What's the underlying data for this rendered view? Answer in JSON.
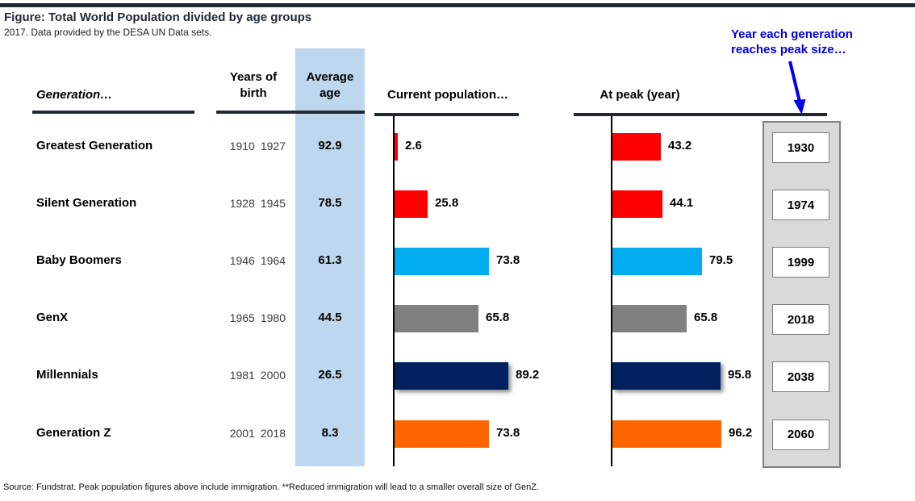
{
  "header": {
    "title": "Figure: Total World Population divided by age groups",
    "subtitle": "2017. Data provided by the DESA UN Data sets."
  },
  "columns": {
    "generation": "Generation…",
    "years_of_birth_line1": "Years of",
    "years_of_birth_line2": "birth",
    "average_age_line1": "Average",
    "average_age_line2": "age",
    "current_population": "Current population…",
    "at_peak": "At peak (year)"
  },
  "annotation": {
    "line1": "Year each generation",
    "line2": "reaches peak size…"
  },
  "rows": [
    {
      "generation": "Greatest Generation",
      "birth_start": "1910",
      "birth_end": "1927",
      "avg_age": 92.9,
      "current": 2.6,
      "peak": 43.2,
      "peak_year": "1930",
      "color": "#FF0000",
      "shadow": false
    },
    {
      "generation": "Silent Generation",
      "birth_start": "1928",
      "birth_end": "1945",
      "avg_age": 78.5,
      "current": 25.8,
      "peak": 44.1,
      "peak_year": "1974",
      "color": "#FF0000",
      "shadow": false
    },
    {
      "generation": "Baby Boomers",
      "birth_start": "1946",
      "birth_end": "1964",
      "avg_age": 61.3,
      "current": 73.8,
      "peak": 79.5,
      "peak_year": "1999",
      "color": "#00AEEF",
      "shadow": false
    },
    {
      "generation": "GenX",
      "birth_start": "1965",
      "birth_end": "1980",
      "avg_age": 44.5,
      "current": 65.8,
      "peak": 65.8,
      "peak_year": "2018",
      "color": "#808080",
      "shadow": false
    },
    {
      "generation": "Millennials",
      "birth_start": "1981",
      "birth_end": "2000",
      "avg_age": 26.5,
      "current": 89.2,
      "peak": 95.8,
      "peak_year": "2038",
      "color": "#002060",
      "shadow": true
    },
    {
      "generation": "Generation Z",
      "birth_start": "2001",
      "birth_end": "2018",
      "avg_age": 8.3,
      "current": 73.8,
      "peak": 96.2,
      "peak_year": "2060",
      "color": "#FF6600",
      "shadow": false
    }
  ],
  "footer": {
    "source": "Source: Fundstrat.  Peak population figures above include immigration.  **Reduced immigration will lead to a smaller overall size of GenZ."
  },
  "colors": {
    "band": "#BDD7EE",
    "panel": "#D9D9D9",
    "panel_border": "#808080",
    "rule": "#222A35",
    "annotation_blue": "#0000EE",
    "axis": "#000000"
  },
  "chart_data": {
    "type": "bar",
    "orientation": "horizontal",
    "title": "Figure: Total World Population divided by age groups",
    "subtitle": "2017. Data provided by the DESA UN Data sets.",
    "categories": [
      "Greatest Generation",
      "Silent Generation",
      "Baby Boomers",
      "GenX",
      "Millennials",
      "Generation Z"
    ],
    "years_of_birth": [
      [
        "1910",
        "1927"
      ],
      [
        "1928",
        "1945"
      ],
      [
        "1946",
        "1964"
      ],
      [
        "1965",
        "1980"
      ],
      [
        "1981",
        "2000"
      ],
      [
        "2001",
        "2018"
      ]
    ],
    "average_age": [
      92.9,
      78.5,
      61.3,
      44.5,
      26.5,
      8.3
    ],
    "series": [
      {
        "name": "Current population…",
        "values": [
          2.6,
          25.8,
          73.8,
          65.8,
          89.2,
          73.8
        ]
      },
      {
        "name": "At peak (year)",
        "values": [
          43.2,
          44.1,
          79.5,
          65.8,
          95.8,
          96.2
        ]
      }
    ],
    "peak_years": [
      "1930",
      "1974",
      "1999",
      "2018",
      "2038",
      "2060"
    ],
    "bar_colors": [
      "#FF0000",
      "#FF0000",
      "#00AEEF",
      "#808080",
      "#002060",
      "#FF6600"
    ],
    "grid": false,
    "legend": false,
    "value_labels": true
  }
}
